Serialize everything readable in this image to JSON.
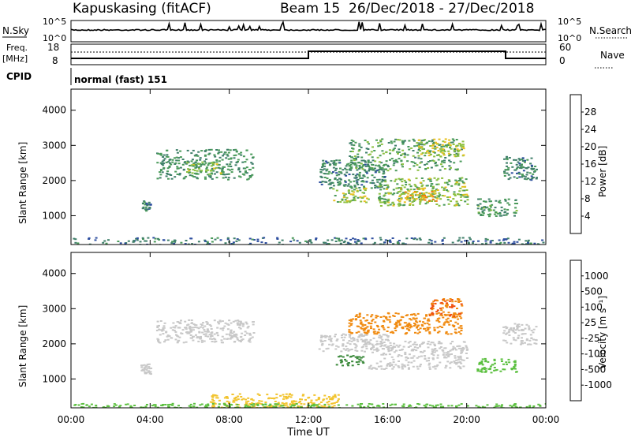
{
  "header": {
    "station": "Kapuskasing (fitACF)",
    "beam": "Beam 15",
    "date_range": "26/Dec/2018 - 27/Dec/2018"
  },
  "top_panels": {
    "nsky_label": "N.Sky",
    "nsky_ticks": [
      "10^5",
      "10^0"
    ],
    "nsearch_label": "N.Search",
    "nsearch_ticks": [
      "10^5",
      "10^0"
    ],
    "freq_label_line1": "Freq.",
    "freq_label_line2": "[MHz]",
    "freq_ticks": [
      "18",
      "8"
    ],
    "nave_label": "Nave",
    "nave_ticks": [
      "60",
      "0"
    ],
    "cpid_label": "CPID",
    "cpid_value": "normal (fast) 151"
  },
  "x_axis": {
    "label": "Time UT",
    "ticks": [
      "00:00",
      "04:00",
      "08:00",
      "12:00",
      "16:00",
      "20:00",
      "00:00"
    ]
  },
  "colors": {
    "power": [
      "#1a1adc",
      "#2f4fa0",
      "#3f7f6a",
      "#4a9a5a",
      "#8cc040",
      "#e8c020",
      "#f07a10",
      "#e02010"
    ],
    "velocity": [
      "#e01515",
      "#f05010",
      "#f08a10",
      "#f2c430",
      "#c8c8c8",
      "#5cc040",
      "#3c8a3c",
      "#2a4fa0",
      "#1a2ac8"
    ],
    "ground": "#c8c8c8"
  },
  "chart_data": [
    {
      "type": "heatmap",
      "title": "",
      "ylabel": "Slant Range [km]",
      "xlabel": "",
      "xlim_hours": [
        0,
        24
      ],
      "ylim": [
        180,
        4600
      ],
      "yticks": [
        1000,
        2000,
        3000,
        4000
      ],
      "colorbar_label": "Power [dB]",
      "colorbar_ticks": [
        "4",
        "8",
        "12",
        "16",
        "20",
        "24",
        "28"
      ],
      "colorbar_range": [
        0,
        30
      ],
      "regions": [
        {
          "t0": 4.3,
          "t1": 9.2,
          "r0": 2050,
          "r1": 2900,
          "level": 12
        },
        {
          "t0": 5.8,
          "t1": 7.6,
          "r0": 2200,
          "r1": 2550,
          "level": 17
        },
        {
          "t0": 3.5,
          "t1": 4.0,
          "r0": 1150,
          "r1": 1450,
          "level": 10
        },
        {
          "t0": 12.5,
          "t1": 16.0,
          "r0": 1800,
          "r1": 2600,
          "level": 11
        },
        {
          "t0": 13.2,
          "t1": 15.0,
          "r0": 1400,
          "r1": 1800,
          "level": 18
        },
        {
          "t0": 14.0,
          "t1": 19.7,
          "r0": 2300,
          "r1": 3200,
          "level": 14
        },
        {
          "t0": 17.5,
          "t1": 19.8,
          "r0": 2700,
          "r1": 3200,
          "level": 19
        },
        {
          "t0": 15.5,
          "t1": 20.0,
          "r0": 1300,
          "r1": 2100,
          "level": 17
        },
        {
          "t0": 16.5,
          "t1": 18.5,
          "r0": 1400,
          "r1": 1800,
          "level": 22
        },
        {
          "t0": 20.5,
          "t1": 22.5,
          "r0": 1000,
          "r1": 1500,
          "level": 13
        },
        {
          "t0": 21.8,
          "t1": 23.5,
          "r0": 2000,
          "r1": 2700,
          "level": 11
        },
        {
          "t0": 0.0,
          "t1": 24.0,
          "r0": 180,
          "r1": 400,
          "level": 9
        }
      ]
    },
    {
      "type": "heatmap",
      "title": "",
      "ylabel": "Slant Range [km]",
      "xlabel": "Time UT",
      "xlim_hours": [
        0,
        24
      ],
      "ylim": [
        180,
        4600
      ],
      "yticks": [
        1000,
        2000,
        3000,
        4000
      ],
      "colorbar_label": "Velocity [m s⁻¹]",
      "colorbar_ticks": [
        "1000",
        "500",
        "100",
        "25",
        "-25",
        "-100",
        "-500",
        "-1000"
      ],
      "colorbar_range": [
        -1200,
        1200
      ],
      "regions": [
        {
          "t0": 4.3,
          "t1": 9.2,
          "r0": 2050,
          "r1": 2700,
          "level": 0
        },
        {
          "t0": 3.5,
          "t1": 4.0,
          "r0": 1150,
          "r1": 1450,
          "level": 0
        },
        {
          "t0": 12.5,
          "t1": 16.0,
          "r0": 1800,
          "r1": 2300,
          "level": 0
        },
        {
          "t0": 14.0,
          "t1": 19.7,
          "r0": 2300,
          "r1": 2900,
          "level": -250
        },
        {
          "t0": 18.0,
          "t1": 19.8,
          "r0": 2800,
          "r1": 3300,
          "level": -500
        },
        {
          "t0": 15.0,
          "t1": 20.0,
          "r0": 1300,
          "r1": 2100,
          "level": 0
        },
        {
          "t0": 13.3,
          "t1": 14.8,
          "r0": 1400,
          "r1": 1700,
          "level": 150
        },
        {
          "t0": 20.5,
          "t1": 22.5,
          "r0": 1200,
          "r1": 1600,
          "level": 60
        },
        {
          "t0": 21.8,
          "t1": 23.5,
          "r0": 2000,
          "r1": 2600,
          "level": 0
        },
        {
          "t0": 7.0,
          "t1": 13.5,
          "r0": 180,
          "r1": 600,
          "level": -80
        },
        {
          "t0": 0.0,
          "t1": 24.0,
          "r0": 180,
          "r1": 320,
          "level": 40
        }
      ]
    }
  ]
}
